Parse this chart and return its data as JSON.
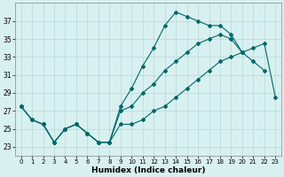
{
  "xlabel": "Humidex (Indice chaleur)",
  "bg_color": "#d8f0f0",
  "grid_color": "#b8d8d8",
  "line_color": "#006868",
  "xlim": [
    -0.5,
    23.5
  ],
  "ylim": [
    22.0,
    39.0
  ],
  "yticks": [
    23,
    25,
    27,
    29,
    31,
    33,
    35,
    37
  ],
  "xticks": [
    0,
    1,
    2,
    3,
    4,
    5,
    6,
    7,
    8,
    9,
    10,
    11,
    12,
    13,
    14,
    15,
    16,
    17,
    18,
    19,
    20,
    21,
    22,
    23
  ],
  "line1_x": [
    0,
    1,
    2,
    3,
    4,
    5,
    6,
    7,
    8,
    9,
    10,
    11,
    12,
    13,
    14,
    15,
    16,
    17,
    18,
    19,
    20,
    21,
    22,
    23
  ],
  "line1_y": [
    27.5,
    26.0,
    25.5,
    23.5,
    25.0,
    25.5,
    24.5,
    23.5,
    23.5,
    27.5,
    29.5,
    32.0,
    34.0,
    36.5,
    38.0,
    37.5,
    37.0,
    36.5,
    36.5,
    35.5,
    null,
    null,
    null,
    null
  ],
  "line2_x": [
    0,
    1,
    2,
    3,
    4,
    5,
    6,
    7,
    8,
    9,
    10,
    11,
    12,
    13,
    14,
    15,
    16,
    17,
    18,
    19,
    20,
    21,
    22,
    23
  ],
  "line2_y": [
    null,
    null,
    null,
    null,
    null,
    null,
    null,
    null,
    null,
    null,
    null,
    null,
    null,
    null,
    null,
    null,
    null,
    null,
    null,
    35.0,
    33.5,
    32.5,
    31.5,
    null
  ],
  "line3_x": [
    0,
    1,
    2,
    3,
    4,
    5,
    6,
    7,
    8,
    9,
    10,
    11,
    12,
    13,
    14,
    15,
    16,
    17,
    18,
    19,
    20,
    21,
    22,
    23
  ],
  "line3_y": [
    null,
    null,
    null,
    null,
    null,
    null,
    null,
    null,
    null,
    null,
    null,
    null,
    null,
    null,
    null,
    null,
    null,
    null,
    36.0,
    35.5,
    33.5,
    null,
    null,
    null
  ],
  "top_x": [
    0,
    1,
    2,
    3,
    4,
    5,
    6,
    7,
    8,
    9,
    10,
    11,
    12,
    13,
    14,
    15,
    16,
    17,
    18,
    19,
    20
  ],
  "top_y": [
    27.5,
    26.0,
    25.5,
    23.5,
    25.0,
    25.5,
    24.5,
    23.5,
    23.5,
    27.5,
    29.5,
    32.0,
    34.0,
    36.5,
    38.0,
    37.5,
    37.0,
    36.5,
    36.5,
    35.5,
    33.5
  ],
  "mid_x": [
    0,
    1,
    2,
    3,
    4,
    5,
    6,
    7,
    8,
    9,
    10,
    11,
    12,
    13,
    14,
    15,
    16,
    17,
    18,
    19,
    20,
    21,
    22
  ],
  "mid_y": [
    27.5,
    26.0,
    25.5,
    23.5,
    25.0,
    25.5,
    24.5,
    23.5,
    23.5,
    27.0,
    27.5,
    29.0,
    30.0,
    31.5,
    32.5,
    33.5,
    34.5,
    35.0,
    35.5,
    35.0,
    33.5,
    32.5,
    31.5
  ],
  "bot_x": [
    0,
    1,
    2,
    3,
    4,
    5,
    6,
    7,
    8,
    9,
    10,
    11,
    12,
    13,
    14,
    15,
    16,
    17,
    18,
    19,
    20,
    21,
    22,
    23
  ],
  "bot_y": [
    27.5,
    26.0,
    25.5,
    23.5,
    25.0,
    25.5,
    24.5,
    23.5,
    23.5,
    25.5,
    25.5,
    26.0,
    27.0,
    27.5,
    28.5,
    29.5,
    30.5,
    31.5,
    32.5,
    33.0,
    33.5,
    34.0,
    34.5,
    28.5
  ]
}
